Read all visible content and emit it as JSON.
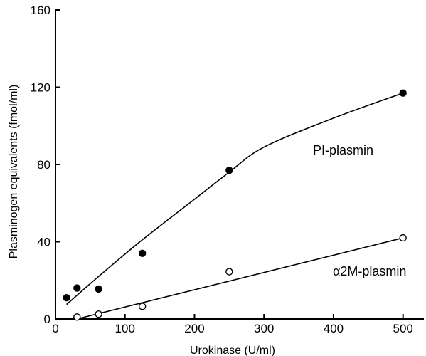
{
  "chart_data": {
    "type": "scatter",
    "xlabel": "Urokinase (U/ml)",
    "ylabel": "Plasminogen equivalents (fmol/ml)",
    "xlim": [
      0,
      530
    ],
    "ylim": [
      0,
      160
    ],
    "xticks": [
      0,
      100,
      200,
      300,
      400,
      500
    ],
    "yticks": [
      0,
      40,
      80,
      120,
      160
    ],
    "grid": false,
    "series": [
      {
        "name": "PI-plasmin",
        "marker": "filled-circle",
        "x": [
          16,
          31,
          62,
          125,
          250,
          500
        ],
        "y": [
          11,
          16,
          15.5,
          34,
          77,
          117
        ],
        "fit": {
          "x": [
            16,
            62,
            125,
            200,
            250,
            300,
            400,
            500
          ],
          "y": [
            7.5,
            22,
            41,
            62,
            76,
            89,
            104,
            117
          ]
        }
      },
      {
        "name": "α2M-plasmin",
        "marker": "open-circle",
        "x": [
          31,
          62,
          125,
          250,
          500
        ],
        "y": [
          1,
          2.5,
          6.5,
          24.5,
          42
        ],
        "fit": {
          "x": [
            31,
            500
          ],
          "y": [
            0,
            42
          ]
        }
      }
    ]
  }
}
